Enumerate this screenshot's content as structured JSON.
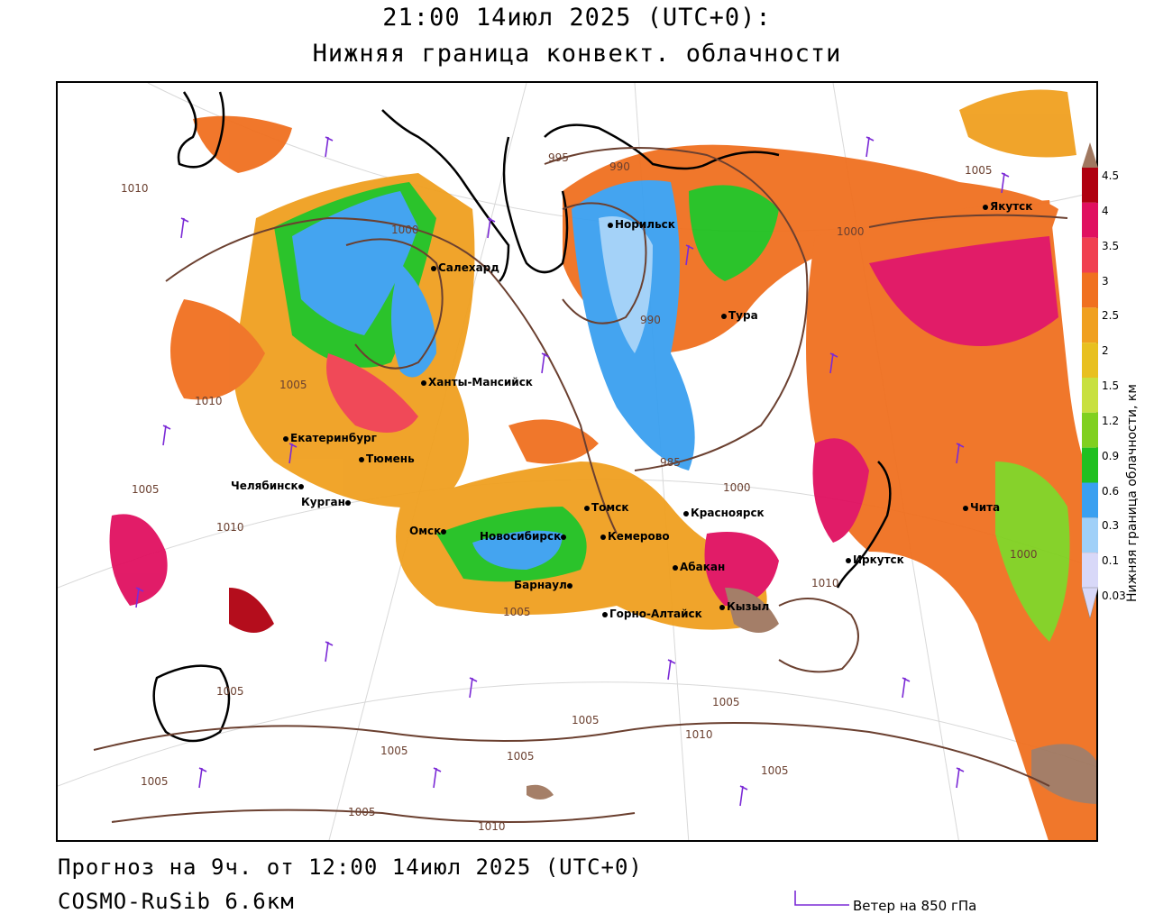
{
  "header": {
    "title": "21:00 14июл 2025 (UTC+0):",
    "subtitle": "Нижняя граница конвект. облачности"
  },
  "footer": {
    "forecast": "Прогноз на 9ч. от 12:00 14июл 2025 (UTC+0)",
    "model": "COSMO-RuSib 6.6км"
  },
  "wind_legend": {
    "label": "Ветер на 850 гПа",
    "color": "#7b2ad6"
  },
  "legend": {
    "title": "Нижняя граница облачности, км",
    "levels": [
      "4.5",
      "4",
      "3.5",
      "3",
      "2.5",
      "2",
      "1.5",
      "1.2",
      "0.9",
      "0.6",
      "0.3",
      "0.1",
      "0.03"
    ],
    "colors": [
      "#a07860",
      "#b00010",
      "#e01060",
      "#f04050",
      "#f07020",
      "#f0a020",
      "#e8c020",
      "#c8e040",
      "#80d020",
      "#20c020",
      "#3aa0f0",
      "#a0d0f8",
      "#d8d8f8"
    ]
  },
  "cities": [
    {
      "name": "Норильск",
      "pos": "norilsk"
    },
    {
      "name": "Якутск",
      "pos": "yakutsk"
    },
    {
      "name": "Салехард",
      "pos": "salekhard"
    },
    {
      "name": "Тура",
      "pos": "tura"
    },
    {
      "name": "Ханты-Мансийск",
      "pos": "khm"
    },
    {
      "name": "Екатеринбург",
      "pos": "ekb"
    },
    {
      "name": "Тюмень",
      "pos": "tyumen"
    },
    {
      "name": "Челябинск",
      "pos": "chel"
    },
    {
      "name": "Курган",
      "pos": "kurgan"
    },
    {
      "name": "Омск",
      "pos": "omsk"
    },
    {
      "name": "Новосибирск",
      "pos": "nsk"
    },
    {
      "name": "Томск",
      "pos": "tomsk"
    },
    {
      "name": "Кемерово",
      "pos": "kem"
    },
    {
      "name": "Красноярск",
      "pos": "krsk"
    },
    {
      "name": "Абакан",
      "pos": "abakan"
    },
    {
      "name": "Барнаул",
      "pos": "barnaul"
    },
    {
      "name": "Горно-Алтайск",
      "pos": "ga"
    },
    {
      "name": "Кызыл",
      "pos": "kyzyl"
    },
    {
      "name": "Иркутск",
      "pos": "irkutsk"
    },
    {
      "name": "Чита",
      "pos": "chita"
    }
  ],
  "isobars": [
    "995",
    "990",
    "1005",
    "1000",
    "1000",
    "990",
    "1005",
    "1010",
    "1005",
    "1010",
    "1010",
    "985",
    "1000",
    "1005",
    "1010",
    "1005",
    "1005",
    "1005",
    "1005",
    "1010",
    "1005",
    "1005",
    "1005",
    "1010",
    "1000",
    "1005"
  ]
}
